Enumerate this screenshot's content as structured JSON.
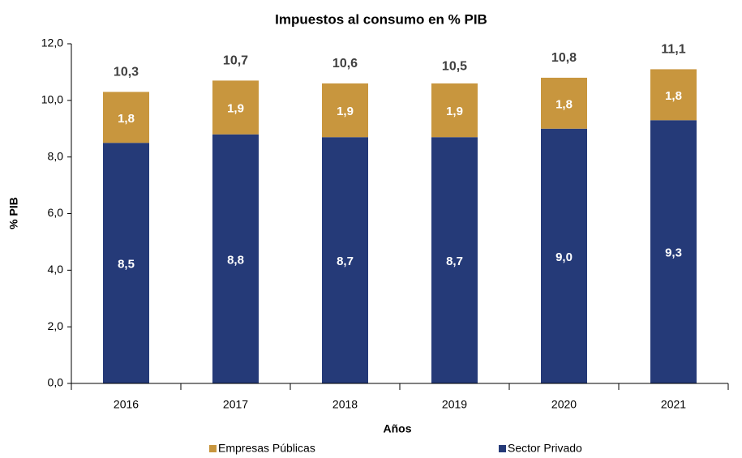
{
  "chart_data": {
    "type": "stacked_bar",
    "title": "Impuestos al consumo en % PIB",
    "x_label": "Años",
    "y_label": "% PIB",
    "categories": [
      "2016",
      "2017",
      "2018",
      "2019",
      "2020",
      "2021"
    ],
    "series": [
      {
        "name": "Sector Privado",
        "color": "#253a78",
        "values": [
          8.5,
          8.8,
          8.7,
          8.7,
          9.0,
          9.3
        ],
        "value_labels": [
          "8,5",
          "8,8",
          "8,7",
          "8,7",
          "9,0",
          "9,3"
        ]
      },
      {
        "name": "Empresas Públicas",
        "color": "#c8963e",
        "values": [
          1.8,
          1.9,
          1.9,
          1.9,
          1.8,
          1.8
        ],
        "value_labels": [
          "1,8",
          "1,9",
          "1,9",
          "1,9",
          "1,8",
          "1,8"
        ]
      }
    ],
    "totals": {
      "values": [
        10.3,
        10.7,
        10.6,
        10.5,
        10.8,
        11.1
      ],
      "value_labels": [
        "10,3",
        "10,7",
        "10,6",
        "10,5",
        "10,8",
        "11,1"
      ]
    },
    "ylim": [
      0,
      12
    ],
    "yticks": [
      {
        "value": 0,
        "label": "0,0"
      },
      {
        "value": 2,
        "label": "2,0"
      },
      {
        "value": 4,
        "label": "4,0"
      },
      {
        "value": 6,
        "label": "6,0"
      },
      {
        "value": 8,
        "label": "8,0"
      },
      {
        "value": 10,
        "label": "10,0"
      },
      {
        "value": 12,
        "label": "12,0"
      }
    ],
    "legend_order": [
      "Empresas Públicas",
      "Sector Privado"
    ],
    "legend": "bottom"
  }
}
